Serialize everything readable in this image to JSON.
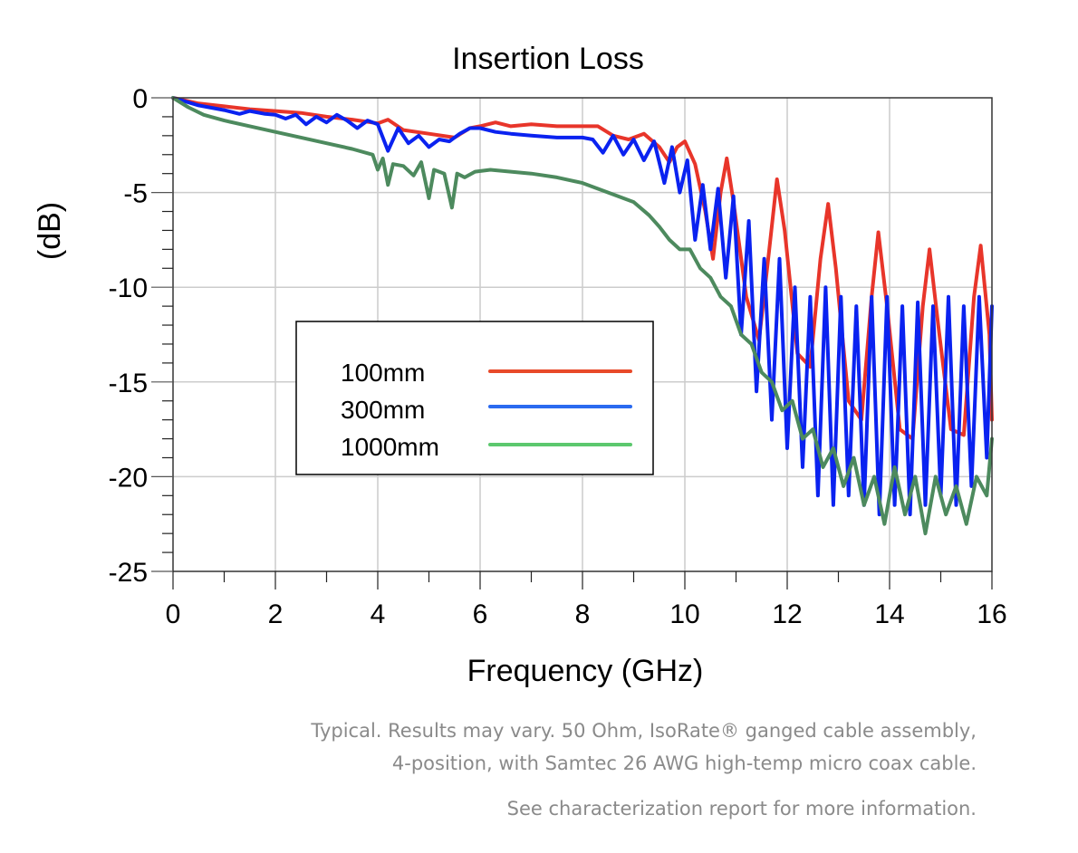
{
  "chart_data": {
    "type": "line",
    "title": "Insertion Loss",
    "xlabel": "Frequency (GHz)",
    "ylabel": "(dB)",
    "xlim": [
      0,
      16
    ],
    "ylim": [
      -25,
      0
    ],
    "x_ticks": [
      0,
      2,
      4,
      6,
      8,
      10,
      12,
      14,
      16
    ],
    "x_tick_labels": [
      "0",
      "2",
      "4",
      "6",
      "8",
      "10",
      "12",
      "14",
      "16"
    ],
    "x_minor_step": 1,
    "y_ticks": [
      0,
      -5,
      -10,
      -15,
      -20,
      -25
    ],
    "y_tick_labels": [
      "0",
      "-5",
      "-10",
      "-15",
      "-20",
      "-25"
    ],
    "y_minor_step": 1,
    "grid": true,
    "legend": {
      "placement": "center-left",
      "entries": [
        "100mm",
        "300mm",
        "1000mm"
      ]
    },
    "series": [
      {
        "name": "100mm",
        "color": "#e8352a",
        "legend_color": "#e84a2a",
        "points": [
          [
            0,
            0
          ],
          [
            0.5,
            -0.3
          ],
          [
            1,
            -0.45
          ],
          [
            1.5,
            -0.6
          ],
          [
            2,
            -0.7
          ],
          [
            2.5,
            -0.8
          ],
          [
            3,
            -1.0
          ],
          [
            3.5,
            -1.15
          ],
          [
            4,
            -1.35
          ],
          [
            4.2,
            -1.15
          ],
          [
            4.5,
            -1.7
          ],
          [
            5,
            -1.9
          ],
          [
            5.5,
            -2.1
          ],
          [
            5.8,
            -1.6
          ],
          [
            6,
            -1.5
          ],
          [
            6.3,
            -1.3
          ],
          [
            6.6,
            -1.5
          ],
          [
            7,
            -1.4
          ],
          [
            7.5,
            -1.5
          ],
          [
            8,
            -1.5
          ],
          [
            8.3,
            -1.5
          ],
          [
            8.6,
            -2.0
          ],
          [
            8.9,
            -2.2
          ],
          [
            9.2,
            -1.9
          ],
          [
            9.5,
            -2.6
          ],
          [
            9.7,
            -3.4
          ],
          [
            9.85,
            -2.6
          ],
          [
            10,
            -2.3
          ],
          [
            10.2,
            -3.5
          ],
          [
            10.4,
            -6.0
          ],
          [
            10.55,
            -8.5
          ],
          [
            10.7,
            -5.0
          ],
          [
            10.82,
            -3.2
          ],
          [
            10.95,
            -5.5
          ],
          [
            11.2,
            -10.5
          ],
          [
            11.45,
            -12.8
          ],
          [
            11.65,
            -8.0
          ],
          [
            11.8,
            -4.3
          ],
          [
            11.95,
            -7.0
          ],
          [
            12.2,
            -13.5
          ],
          [
            12.45,
            -14.2
          ],
          [
            12.65,
            -8.5
          ],
          [
            12.8,
            -5.6
          ],
          [
            12.95,
            -9.0
          ],
          [
            13.2,
            -16.0
          ],
          [
            13.45,
            -17.0
          ],
          [
            13.65,
            -10.5
          ],
          [
            13.78,
            -7.1
          ],
          [
            13.95,
            -11.0
          ],
          [
            14.2,
            -17.5
          ],
          [
            14.45,
            -18.0
          ],
          [
            14.65,
            -11.0
          ],
          [
            14.78,
            -8.0
          ],
          [
            14.95,
            -12.0
          ],
          [
            15.2,
            -17.5
          ],
          [
            15.45,
            -17.8
          ],
          [
            15.65,
            -10.5
          ],
          [
            15.78,
            -7.8
          ],
          [
            15.95,
            -12.5
          ],
          [
            16,
            -17.0
          ]
        ]
      },
      {
        "name": "300mm",
        "color": "#0a22f0",
        "legend_color": "#2a6af0",
        "points": [
          [
            0,
            0
          ],
          [
            0.5,
            -0.4
          ],
          [
            1,
            -0.65
          ],
          [
            1.3,
            -0.85
          ],
          [
            1.5,
            -0.7
          ],
          [
            1.8,
            -0.85
          ],
          [
            2,
            -0.9
          ],
          [
            2.2,
            -1.1
          ],
          [
            2.4,
            -0.9
          ],
          [
            2.6,
            -1.4
          ],
          [
            2.8,
            -1.0
          ],
          [
            3,
            -1.3
          ],
          [
            3.2,
            -0.9
          ],
          [
            3.4,
            -1.2
          ],
          [
            3.6,
            -1.6
          ],
          [
            3.8,
            -1.2
          ],
          [
            4,
            -1.4
          ],
          [
            4.2,
            -2.8
          ],
          [
            4.4,
            -1.6
          ],
          [
            4.6,
            -2.4
          ],
          [
            4.8,
            -2.0
          ],
          [
            5,
            -2.6
          ],
          [
            5.2,
            -2.2
          ],
          [
            5.4,
            -2.3
          ],
          [
            5.6,
            -1.9
          ],
          [
            5.8,
            -1.6
          ],
          [
            6,
            -1.6
          ],
          [
            6.3,
            -1.8
          ],
          [
            6.6,
            -1.9
          ],
          [
            7,
            -2.0
          ],
          [
            7.5,
            -2.1
          ],
          [
            8,
            -2.1
          ],
          [
            8.2,
            -2.2
          ],
          [
            8.4,
            -2.9
          ],
          [
            8.6,
            -2.0
          ],
          [
            8.8,
            -3.0
          ],
          [
            9,
            -2.2
          ],
          [
            9.2,
            -3.3
          ],
          [
            9.4,
            -2.3
          ],
          [
            9.6,
            -4.5
          ],
          [
            9.75,
            -2.6
          ],
          [
            9.9,
            -5.0
          ],
          [
            10.05,
            -3.3
          ],
          [
            10.2,
            -7.5
          ],
          [
            10.35,
            -4.6
          ],
          [
            10.5,
            -8.0
          ],
          [
            10.65,
            -4.8
          ],
          [
            10.8,
            -9.5
          ],
          [
            10.95,
            -5.2
          ],
          [
            11.1,
            -12.5
          ],
          [
            11.25,
            -6.5
          ],
          [
            11.4,
            -15.5
          ],
          [
            11.55,
            -8.5
          ],
          [
            11.7,
            -17.0
          ],
          [
            11.85,
            -8.5
          ],
          [
            12,
            -18.5
          ],
          [
            12.15,
            -10.0
          ],
          [
            12.3,
            -19.5
          ],
          [
            12.45,
            -10.5
          ],
          [
            12.6,
            -21.0
          ],
          [
            12.75,
            -10.0
          ],
          [
            12.9,
            -21.5
          ],
          [
            13.05,
            -10.5
          ],
          [
            13.2,
            -21.0
          ],
          [
            13.35,
            -11.0
          ],
          [
            13.5,
            -21.5
          ],
          [
            13.65,
            -10.5
          ],
          [
            13.8,
            -22.0
          ],
          [
            13.95,
            -10.5
          ],
          [
            14.1,
            -21.5
          ],
          [
            14.25,
            -11.0
          ],
          [
            14.4,
            -22.0
          ],
          [
            14.55,
            -10.8
          ],
          [
            14.7,
            -21.5
          ],
          [
            14.85,
            -11.0
          ],
          [
            15,
            -21.0
          ],
          [
            15.15,
            -10.5
          ],
          [
            15.3,
            -21.5
          ],
          [
            15.45,
            -11.0
          ],
          [
            15.6,
            -20.5
          ],
          [
            15.75,
            -10.5
          ],
          [
            15.9,
            -19.0
          ],
          [
            16,
            -11.0
          ]
        ]
      },
      {
        "name": "1000mm",
        "color": "#4d8a5e",
        "legend_color": "#5cc86e",
        "points": [
          [
            0,
            0
          ],
          [
            0.3,
            -0.5
          ],
          [
            0.6,
            -0.9
          ],
          [
            1,
            -1.2
          ],
          [
            1.5,
            -1.5
          ],
          [
            2,
            -1.8
          ],
          [
            2.5,
            -2.1
          ],
          [
            3,
            -2.4
          ],
          [
            3.5,
            -2.7
          ],
          [
            3.9,
            -3.0
          ],
          [
            4.0,
            -3.8
          ],
          [
            4.1,
            -3.2
          ],
          [
            4.2,
            -4.6
          ],
          [
            4.3,
            -3.5
          ],
          [
            4.5,
            -3.6
          ],
          [
            4.7,
            -4.1
          ],
          [
            4.85,
            -3.4
          ],
          [
            5.0,
            -5.3
          ],
          [
            5.1,
            -3.8
          ],
          [
            5.3,
            -4.0
          ],
          [
            5.45,
            -5.8
          ],
          [
            5.55,
            -4.0
          ],
          [
            5.7,
            -4.2
          ],
          [
            5.9,
            -3.9
          ],
          [
            6.2,
            -3.8
          ],
          [
            6.6,
            -3.9
          ],
          [
            7,
            -4.0
          ],
          [
            7.5,
            -4.2
          ],
          [
            8,
            -4.5
          ],
          [
            8.5,
            -5.0
          ],
          [
            9,
            -5.5
          ],
          [
            9.3,
            -6.2
          ],
          [
            9.5,
            -6.8
          ],
          [
            9.7,
            -7.5
          ],
          [
            9.9,
            -8.0
          ],
          [
            10.1,
            -8.0
          ],
          [
            10.3,
            -9.0
          ],
          [
            10.5,
            -9.5
          ],
          [
            10.7,
            -10.5
          ],
          [
            10.9,
            -11.0
          ],
          [
            11.1,
            -12.5
          ],
          [
            11.3,
            -13.0
          ],
          [
            11.5,
            -14.5
          ],
          [
            11.7,
            -15.0
          ],
          [
            11.9,
            -16.5
          ],
          [
            12.1,
            -16.0
          ],
          [
            12.3,
            -18.0
          ],
          [
            12.5,
            -17.5
          ],
          [
            12.7,
            -19.5
          ],
          [
            12.9,
            -18.5
          ],
          [
            13.1,
            -20.5
          ],
          [
            13.3,
            -19.0
          ],
          [
            13.5,
            -21.5
          ],
          [
            13.7,
            -20.0
          ],
          [
            13.9,
            -22.5
          ],
          [
            14.1,
            -19.5
          ],
          [
            14.3,
            -22.0
          ],
          [
            14.5,
            -20.0
          ],
          [
            14.7,
            -23.0
          ],
          [
            14.9,
            -20.0
          ],
          [
            15.1,
            -22.0
          ],
          [
            15.3,
            -20.5
          ],
          [
            15.5,
            -22.5
          ],
          [
            15.7,
            -20.0
          ],
          [
            15.9,
            -21.0
          ],
          [
            16,
            -18.0
          ]
        ]
      }
    ]
  },
  "footnote": {
    "line1": "Typical. Results may vary. 50 Ohm, IsoRate® ganged cable assembly,",
    "line2": "4-position, with Samtec 26 AWG high-temp micro coax cable.",
    "line3": "See characterization report for more information."
  }
}
